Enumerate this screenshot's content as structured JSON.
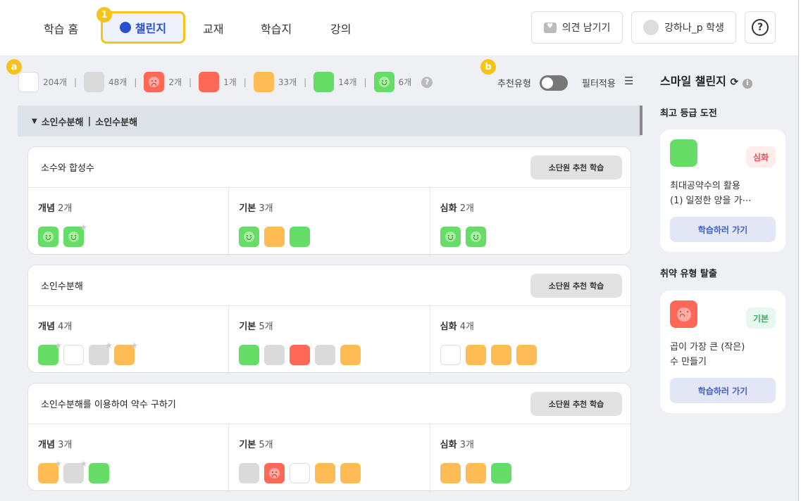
{
  "nav": {
    "items": [
      "학습 홈",
      "챌린지",
      "교재",
      "학습지",
      "강의"
    ],
    "active": 1,
    "badge": "1"
  },
  "top_buttons": {
    "feedback": "의견 남기기",
    "user": "강하나_p 학생",
    "help": "?"
  },
  "legend": {
    "badge": "a",
    "items": [
      {
        "type": "white",
        "count": "204개"
      },
      {
        "type": "gray",
        "count": "48개"
      },
      {
        "type": "sad",
        "count": "2개"
      },
      {
        "type": "red",
        "count": "1개"
      },
      {
        "type": "orange",
        "count": "33개"
      },
      {
        "type": "green",
        "count": "14개"
      },
      {
        "type": "smile",
        "count": "6개"
      }
    ]
  },
  "controls": {
    "badge": "b",
    "recommend_label": "추천유형",
    "recommend_on": false,
    "filter_label": "필터적용"
  },
  "section": {
    "title1": "소인수분해",
    "divider": "|",
    "title2": "소인수분해"
  },
  "cards": [
    {
      "title": "소수와 합성수",
      "button": "소단원 추천 학습",
      "cols": [
        {
          "label": "개념",
          "count": "2개",
          "tiles": [
            {
              "t": "smile"
            },
            {
              "t": "smile",
              "star": true
            }
          ]
        },
        {
          "label": "기본",
          "count": "3개",
          "tiles": [
            {
              "t": "smile"
            },
            {
              "t": "orange"
            },
            {
              "t": "green"
            }
          ]
        },
        {
          "label": "심화",
          "count": "2개",
          "tiles": [
            {
              "t": "smile"
            },
            {
              "t": "smile"
            }
          ]
        }
      ]
    },
    {
      "title": "소인수분해",
      "button": "소단원 추천 학습",
      "cols": [
        {
          "label": "개념",
          "count": "4개",
          "tiles": [
            {
              "t": "green",
              "star": true
            },
            {
              "t": "white"
            },
            {
              "t": "gray",
              "star": true
            },
            {
              "t": "orange",
              "star": true
            }
          ]
        },
        {
          "label": "기본",
          "count": "5개",
          "tiles": [
            {
              "t": "green"
            },
            {
              "t": "gray"
            },
            {
              "t": "red"
            },
            {
              "t": "gray"
            },
            {
              "t": "orange"
            }
          ]
        },
        {
          "label": "심화",
          "count": "4개",
          "tiles": [
            {
              "t": "white"
            },
            {
              "t": "orange"
            },
            {
              "t": "orange"
            },
            {
              "t": "orange"
            }
          ]
        }
      ]
    },
    {
      "title": "소인수분해를 이용하여 약수 구하기",
      "button": "소단원 추천 학습",
      "cols": [
        {
          "label": "개념",
          "count": "3개",
          "tiles": [
            {
              "t": "orange",
              "star": true
            },
            {
              "t": "gray",
              "star": true
            },
            {
              "t": "green"
            }
          ]
        },
        {
          "label": "기본",
          "count": "5개",
          "tiles": [
            {
              "t": "gray"
            },
            {
              "t": "sad"
            },
            {
              "t": "white"
            },
            {
              "t": "orange"
            },
            {
              "t": "orange"
            }
          ]
        },
        {
          "label": "심화",
          "count": "3개",
          "tiles": [
            {
              "t": "orange"
            },
            {
              "t": "orange"
            },
            {
              "t": "green"
            }
          ]
        }
      ]
    }
  ],
  "side": {
    "title": "스마일 챌린지",
    "best": {
      "heading": "최고 등급 도전",
      "tile": "green",
      "level": "심화",
      "line1": "최대공약수의 활용",
      "line2": "(1) 일정한 양을 가⋯",
      "button": "학습하러 가기"
    },
    "weak": {
      "heading": "취약 유형 탈출",
      "tile": "sad",
      "level": "기본",
      "line1": "곱이 가장 큰 (작은)",
      "line2": "수 만들기",
      "button": "학습하러 가기"
    }
  }
}
